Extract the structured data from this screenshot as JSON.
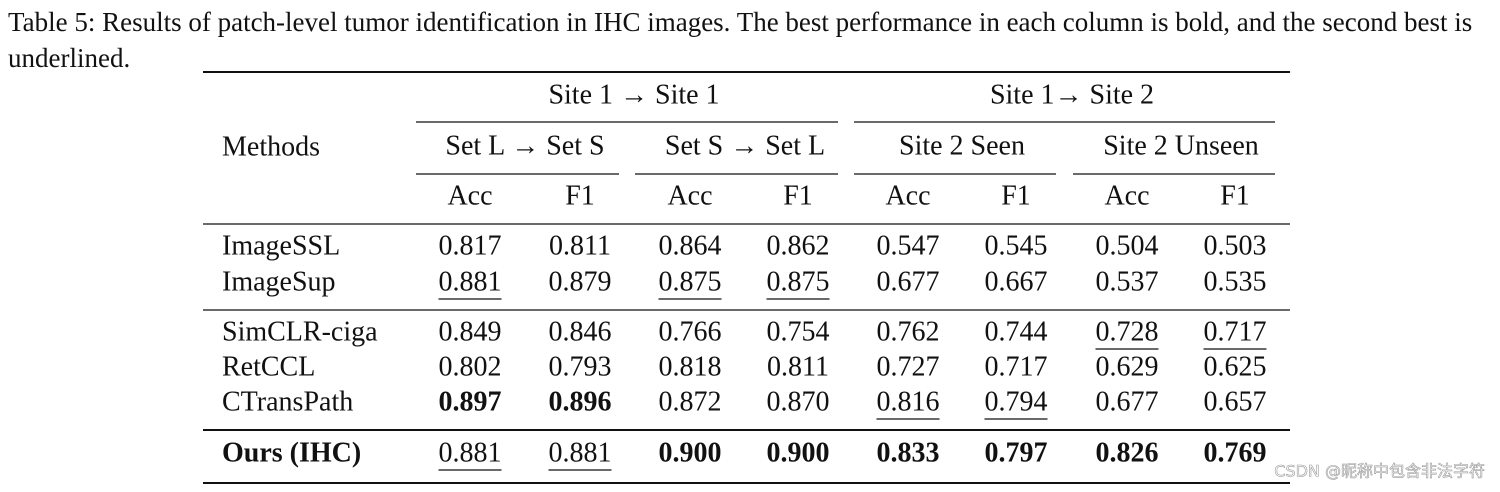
{
  "caption": "Table 5: Results of patch-level tumor identification in IHC images. The best performance in each column is bold, and the second best is underlined.",
  "table": {
    "method_header": "Methods",
    "group_headers": [
      "Site 1 → Site 1",
      "Site 1→ Site 2"
    ],
    "sub_headers": [
      "Set L → Set S",
      "Set S → Set L",
      "Site 2 Seen",
      "Site 2 Unseen"
    ],
    "metric_headers": [
      "Acc",
      "F1",
      "Acc",
      "F1",
      "Acc",
      "F1",
      "Acc",
      "F1"
    ],
    "rows": [
      {
        "method": "ImageSSL",
        "values": [
          "0.817",
          "0.811",
          "0.864",
          "0.862",
          "0.547",
          "0.545",
          "0.504",
          "0.503"
        ]
      },
      {
        "method": "ImageSup",
        "values": [
          "0.881",
          "0.879",
          "0.875",
          "0.875",
          "0.677",
          "0.667",
          "0.537",
          "0.535"
        ]
      },
      {
        "method": "SimCLR-ciga",
        "values": [
          "0.849",
          "0.846",
          "0.766",
          "0.754",
          "0.762",
          "0.744",
          "0.728",
          "0.717"
        ]
      },
      {
        "method": "RetCCL",
        "values": [
          "0.802",
          "0.793",
          "0.818",
          "0.811",
          "0.727",
          "0.717",
          "0.629",
          "0.625"
        ]
      },
      {
        "method": "CTransPath",
        "values": [
          "0.897",
          "0.896",
          "0.872",
          "0.870",
          "0.816",
          "0.794",
          "0.677",
          "0.657"
        ]
      },
      {
        "method": "Ours (IHC)",
        "values": [
          "0.881",
          "0.881",
          "0.900",
          "0.900",
          "0.833",
          "0.797",
          "0.826",
          "0.769"
        ]
      }
    ]
  },
  "watermark": "CSDN @昵称中包含非法字符"
}
